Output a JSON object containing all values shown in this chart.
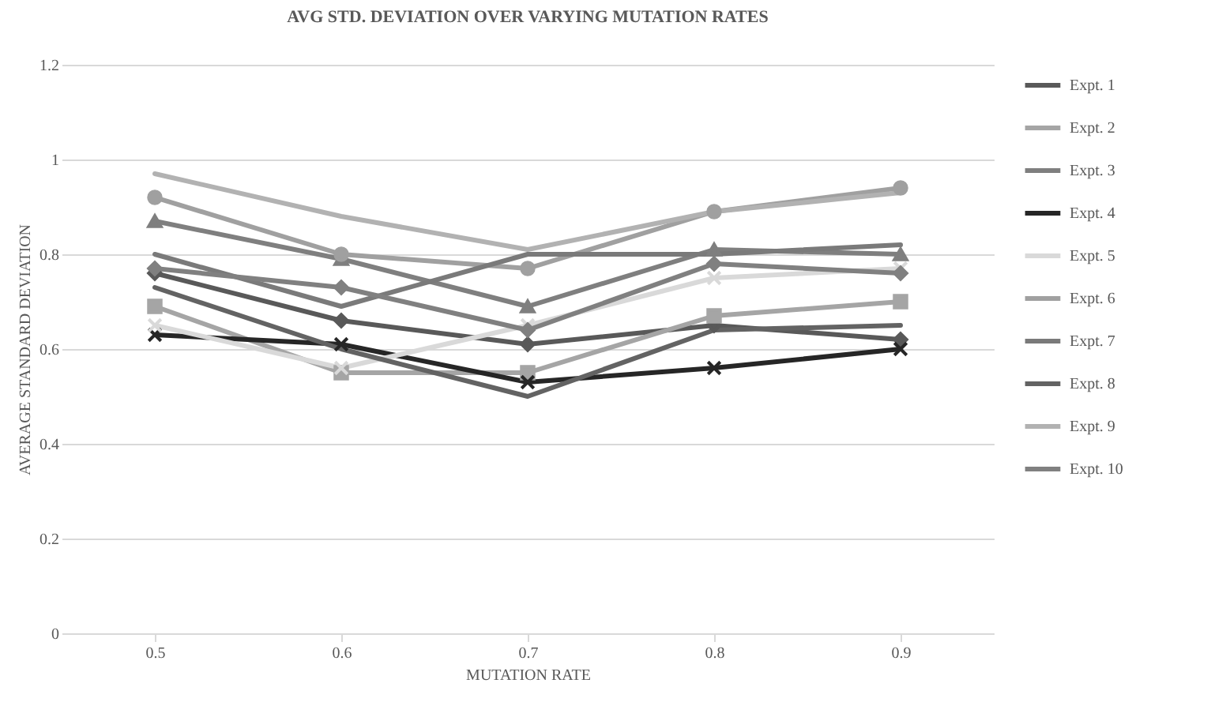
{
  "chart_data": {
    "type": "line",
    "title": "AVG STD. DEVIATION OVER VARYING MUTATION RATES",
    "xlabel": "MUTATION RATE",
    "ylabel": "AVERAGE STANDARD DEVIATION",
    "categories": [
      "0.5",
      "0.6",
      "0.7",
      "0.8",
      "0.9"
    ],
    "series": [
      {
        "name": "Expt. 1",
        "color": "#595959",
        "marker": "diamond",
        "values": [
          0.76,
          0.66,
          0.61,
          0.65,
          0.62
        ]
      },
      {
        "name": "Expt. 2",
        "color": "#a5a5a5",
        "marker": "square",
        "values": [
          0.69,
          0.55,
          0.55,
          0.67,
          0.7
        ]
      },
      {
        "name": "Expt. 3",
        "color": "#7f7f7f",
        "marker": "triangle",
        "values": [
          0.87,
          0.79,
          0.69,
          0.81,
          0.8
        ]
      },
      {
        "name": "Expt. 4",
        "color": "#262626",
        "marker": "cross",
        "values": [
          0.63,
          0.61,
          0.53,
          0.56,
          0.6
        ]
      },
      {
        "name": "Expt. 5",
        "color": "#d9d9d9",
        "marker": "cross",
        "values": [
          0.65,
          0.56,
          0.65,
          0.75,
          0.77
        ]
      },
      {
        "name": "Expt. 6",
        "color": "#a0a0a0",
        "marker": "circle",
        "values": [
          0.92,
          0.8,
          0.77,
          0.89,
          0.94
        ]
      },
      {
        "name": "Expt. 7",
        "color": "#7a7a7a",
        "marker": "none",
        "values": [
          0.8,
          0.69,
          0.8,
          0.8,
          0.82
        ]
      },
      {
        "name": "Expt. 8",
        "color": "#636363",
        "marker": "none",
        "values": [
          0.73,
          0.6,
          0.5,
          0.64,
          0.65
        ]
      },
      {
        "name": "Expt. 9",
        "color": "#b2b2b2",
        "marker": "none",
        "values": [
          0.97,
          0.88,
          0.81,
          0.89,
          0.93
        ]
      },
      {
        "name": "Expt. 10",
        "color": "#808080",
        "marker": "diamond",
        "values": [
          0.77,
          0.73,
          0.64,
          0.78,
          0.76
        ]
      }
    ],
    "ylim": [
      0,
      1.2
    ],
    "yticks": [
      0,
      0.2,
      0.4,
      0.6,
      0.8,
      1,
      1.2
    ],
    "grid": "y",
    "legend": "right",
    "line_style": "solid"
  }
}
